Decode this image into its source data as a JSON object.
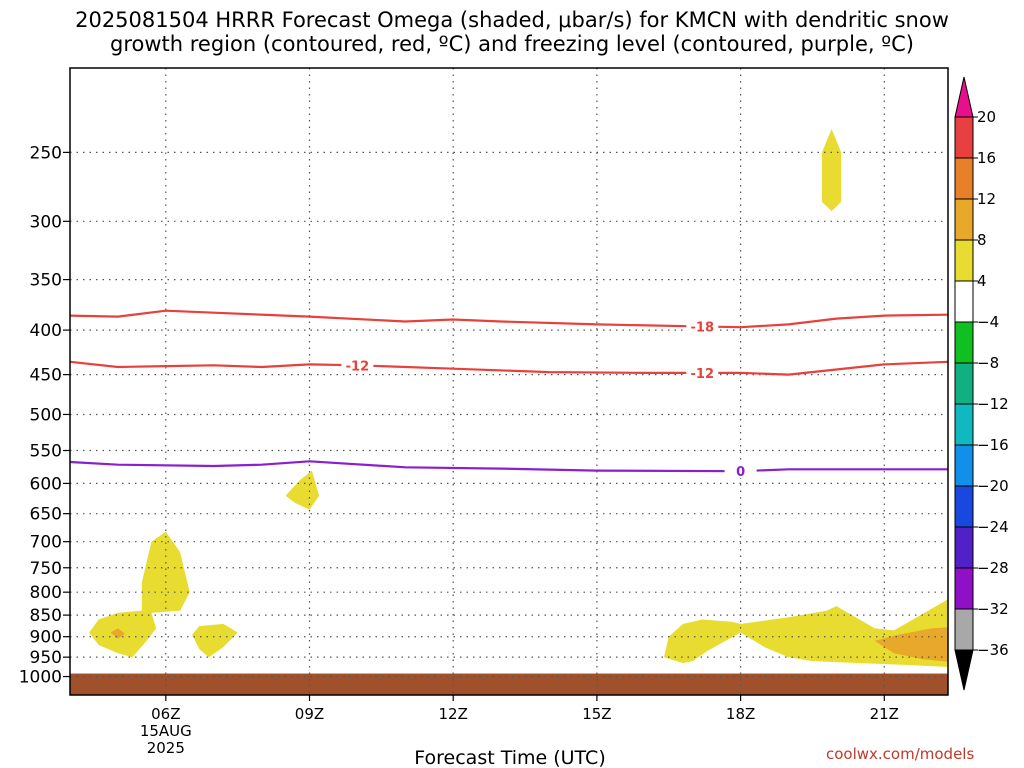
{
  "chart_data": {
    "type": "heatmap",
    "title_line1": "2025081504 HRRR Forecast Omega (shaded, μbar/s) for KMCN with dendritic snow",
    "title_line2": "growth region (contoured, red, ºC) and freezing level (contoured, purple, ºC)",
    "xlabel": "Forecast Time (UTC)",
    "x_range": [
      4,
      22.33
    ],
    "x_ticks": [
      {
        "hour": 6,
        "label": "06Z",
        "sub1": "15AUG",
        "sub2": "2025"
      },
      {
        "hour": 9,
        "label": "09Z",
        "sub1": "",
        "sub2": ""
      },
      {
        "hour": 12,
        "label": "12Z",
        "sub1": "",
        "sub2": ""
      },
      {
        "hour": 15,
        "label": "15Z",
        "sub1": "",
        "sub2": ""
      },
      {
        "hour": 18,
        "label": "18Z",
        "sub1": "",
        "sub2": ""
      },
      {
        "hour": 21,
        "label": "21Z",
        "sub1": "",
        "sub2": ""
      }
    ],
    "y_scale": "log-pressure",
    "y_range_hpa": [
      1050,
      200
    ],
    "y_ticks": [
      250,
      300,
      350,
      400,
      450,
      500,
      550,
      600,
      650,
      700,
      750,
      800,
      850,
      900,
      950,
      1000
    ],
    "grid": true,
    "ground_level_hpa": 1000,
    "contours": [
      {
        "name": "dendritic growth -18",
        "label": "-18",
        "color": "#e8403a",
        "label_at_hour": 17.2,
        "points": [
          [
            4,
            385
          ],
          [
            5,
            386
          ],
          [
            6,
            380
          ],
          [
            7,
            382
          ],
          [
            9,
            386
          ],
          [
            11,
            391
          ],
          [
            12,
            389
          ],
          [
            13,
            391
          ],
          [
            15,
            394
          ],
          [
            17,
            396
          ],
          [
            18,
            397
          ],
          [
            19,
            394
          ],
          [
            20,
            388
          ],
          [
            21,
            385
          ],
          [
            22.33,
            384
          ]
        ]
      },
      {
        "name": "dendritic growth -12",
        "label": "-12",
        "color": "#e8403a",
        "label_at_hour": 10.0,
        "points": [
          [
            4,
            435
          ],
          [
            5,
            441
          ],
          [
            6,
            440
          ],
          [
            7,
            439
          ],
          [
            8,
            441
          ],
          [
            9,
            438
          ],
          [
            10,
            439
          ],
          [
            12,
            443
          ],
          [
            14,
            447
          ],
          [
            16,
            448
          ],
          [
            18,
            448
          ],
          [
            19,
            450
          ],
          [
            20,
            444
          ],
          [
            21,
            438
          ],
          [
            22.33,
            435
          ]
        ]
      },
      {
        "name": "dendritic growth -12 (second label)",
        "label": "-12",
        "color": "#e8403a",
        "label_at_hour": 17.2,
        "points": []
      },
      {
        "name": "freezing level 0",
        "label": "0",
        "color": "#8a1fd0",
        "label_at_hour": 18.0,
        "points": [
          [
            4,
            567
          ],
          [
            5,
            571
          ],
          [
            7,
            573
          ],
          [
            8,
            571
          ],
          [
            9,
            566
          ],
          [
            11,
            575
          ],
          [
            13,
            577
          ],
          [
            15,
            580
          ],
          [
            18,
            581
          ],
          [
            19,
            578
          ],
          [
            20,
            578
          ],
          [
            21,
            578
          ],
          [
            22.33,
            578
          ]
        ]
      }
    ],
    "shaded_regions": [
      {
        "name": "omega 4-8 blob A",
        "range": "4-8",
        "color": "#e8dc30",
        "points": [
          [
            4.4,
            890
          ],
          [
            4.6,
            860
          ],
          [
            5.0,
            845
          ],
          [
            5.5,
            840
          ],
          [
            5.5,
            780
          ],
          [
            5.7,
            700
          ],
          [
            6.0,
            682
          ],
          [
            6.3,
            720
          ],
          [
            6.5,
            800
          ],
          [
            6.3,
            840
          ],
          [
            5.7,
            845
          ],
          [
            5.8,
            880
          ],
          [
            5.6,
            910
          ],
          [
            5.3,
            950
          ],
          [
            5.0,
            940
          ],
          [
            4.6,
            920
          ]
        ]
      },
      {
        "name": "omega 8-12 core A",
        "range": "8-12",
        "color": "#e8a82a",
        "points": [
          [
            4.85,
            890
          ],
          [
            5.0,
            880
          ],
          [
            5.15,
            893
          ],
          [
            5.0,
            905
          ]
        ]
      },
      {
        "name": "omega 4-8 blob B",
        "range": "4-8",
        "color": "#e8dc30",
        "points": [
          [
            6.55,
            895
          ],
          [
            6.7,
            875
          ],
          [
            7.2,
            870
          ],
          [
            7.5,
            890
          ],
          [
            7.2,
            925
          ],
          [
            6.9,
            950
          ],
          [
            6.7,
            930
          ]
        ]
      },
      {
        "name": "omega 4-8 blob C",
        "range": "4-8",
        "color": "#e8dc30",
        "points": [
          [
            8.5,
            620
          ],
          [
            8.8,
            595
          ],
          [
            9.05,
            580
          ],
          [
            9.2,
            620
          ],
          [
            9.0,
            643
          ],
          [
            8.7,
            632
          ]
        ]
      },
      {
        "name": "omega 4-8 blob D",
        "range": "4-8",
        "color": "#e8dc30",
        "points": [
          [
            19.7,
            250
          ],
          [
            19.9,
            235
          ],
          [
            20.1,
            250
          ],
          [
            20.1,
            285
          ],
          [
            19.9,
            292
          ],
          [
            19.7,
            285
          ]
        ]
      },
      {
        "name": "omega 4-8 band E",
        "range": "4-8",
        "color": "#e8dc30",
        "points": [
          [
            16.4,
            950
          ],
          [
            16.5,
            900
          ],
          [
            16.8,
            870
          ],
          [
            17.2,
            860
          ],
          [
            17.8,
            865
          ],
          [
            18.0,
            870
          ],
          [
            19.0,
            855
          ],
          [
            19.8,
            840
          ],
          [
            20.0,
            830
          ],
          [
            20.4,
            855
          ],
          [
            20.8,
            880
          ],
          [
            21.2,
            885
          ],
          [
            21.6,
            860
          ],
          [
            22.0,
            835
          ],
          [
            22.33,
            815
          ],
          [
            22.33,
            975
          ],
          [
            21.5,
            970
          ],
          [
            20.5,
            965
          ],
          [
            19.5,
            960
          ],
          [
            19.0,
            950
          ],
          [
            18.5,
            925
          ],
          [
            18.0,
            890
          ],
          [
            17.3,
            935
          ],
          [
            17.0,
            960
          ],
          [
            16.8,
            965
          ]
        ]
      },
      {
        "name": "omega 8-12 core E",
        "range": "8-12",
        "color": "#e8a82a",
        "points": [
          [
            20.8,
            910
          ],
          [
            21.3,
            895
          ],
          [
            22.0,
            880
          ],
          [
            22.33,
            878
          ],
          [
            22.33,
            962
          ],
          [
            21.8,
            955
          ],
          [
            21.2,
            940
          ]
        ]
      }
    ],
    "colorbar": {
      "units": "μbar/s",
      "segments": [
        {
          "range": "16-20",
          "color": "#e84040"
        },
        {
          "range": "12-16",
          "color": "#e8802a"
        },
        {
          "range": "8-12",
          "color": "#e8a82a"
        },
        {
          "range": "4-8",
          "color": "#e8dc30"
        },
        {
          "range": "-4-4",
          "color": "#ffffff"
        },
        {
          "range": "-8--4",
          "color": "#10c020"
        },
        {
          "range": "-12--8",
          "color": "#10b080"
        },
        {
          "range": "-16--12",
          "color": "#10b8c0"
        },
        {
          "range": "-20--16",
          "color": "#1090e8"
        },
        {
          "range": "-24--20",
          "color": "#1848e0"
        },
        {
          "range": "-28--24",
          "color": "#5020c8"
        },
        {
          "range": "-32--28",
          "color": "#9010c8"
        },
        {
          "range": "-36--32",
          "color": "#a8a8a8"
        }
      ],
      "top_arrow_color": "#e8108a",
      "bottom_arrow_color": "#000000",
      "labels": [
        "20",
        "16",
        "12",
        "8",
        "4",
        "−4",
        "−8",
        "−12",
        "−16",
        "−20",
        "−24",
        "−28",
        "−32",
        "−36"
      ]
    },
    "ground_color": "#a0502a"
  },
  "footer": {
    "credit": "coolwx.com/models"
  }
}
